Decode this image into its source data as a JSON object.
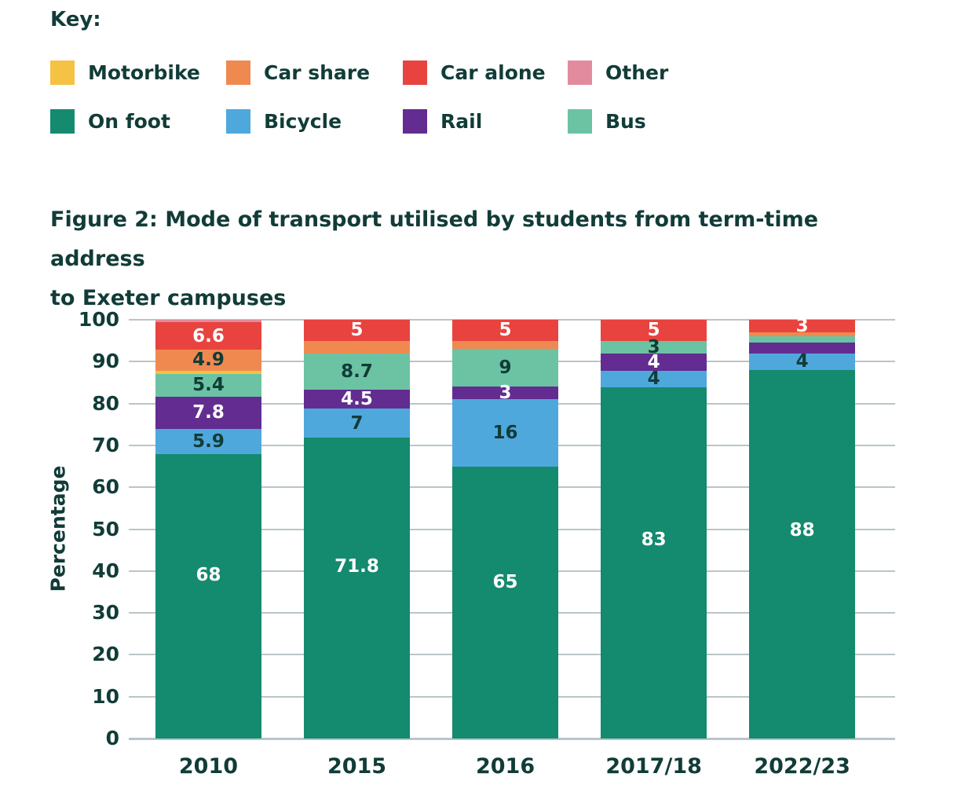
{
  "legend": {
    "title": "Key:",
    "items": [
      {
        "name": "motorbike",
        "label": "Motorbike",
        "color": "#F5C244"
      },
      {
        "name": "car-share",
        "label": "Car share",
        "color": "#F08950"
      },
      {
        "name": "car-alone",
        "label": "Car alone",
        "color": "#E8433E"
      },
      {
        "name": "other",
        "label": "Other",
        "color": "#E28B9F"
      },
      {
        "name": "on-foot",
        "label": "On foot",
        "color": "#148A6E"
      },
      {
        "name": "bicycle",
        "label": "Bicycle",
        "color": "#4FA8DC"
      },
      {
        "name": "rail",
        "label": "Rail",
        "color": "#632C90"
      },
      {
        "name": "bus",
        "label": "Bus",
        "color": "#6BC3A4"
      }
    ]
  },
  "figure": {
    "title_line1": "Figure 2: Mode of transport utilised by students from term-time address",
    "title_line2": "to Exeter campuses"
  },
  "chart_data": {
    "type": "bar",
    "stacked": true,
    "title": "Figure 2: Mode of transport utilised by students from term-time address to Exeter campuses",
    "xlabel": "",
    "ylabel": "Percentage",
    "ylim": [
      0,
      100
    ],
    "yticks": [
      0,
      10,
      20,
      30,
      40,
      50,
      60,
      70,
      80,
      90,
      100
    ],
    "grid": true,
    "legend_position": "top",
    "categories": [
      "2010",
      "2015",
      "2016",
      "2017/18",
      "2022/23"
    ],
    "series": [
      {
        "name": "On foot",
        "color": "#148A6E",
        "label_color": "#FFFFFF",
        "values": [
          68,
          71.8,
          65,
          83,
          88
        ],
        "labels": [
          "68",
          "71.8",
          "65",
          "83",
          "88"
        ]
      },
      {
        "name": "Bicycle",
        "color": "#4FA8DC",
        "label_color": "#113C38",
        "values": [
          5.9,
          7,
          16,
          4,
          4
        ],
        "labels": [
          "5.9",
          "7",
          "16",
          "4",
          "4"
        ]
      },
      {
        "name": "Rail",
        "color": "#632C90",
        "label_color": "#FFFFFF",
        "values": [
          7.8,
          4.5,
          3,
          4,
          2.5
        ],
        "labels": [
          "7.8",
          "4.5",
          "3",
          "4",
          ""
        ]
      },
      {
        "name": "Bus",
        "color": "#6BC3A4",
        "label_color": "#113C38",
        "values": [
          5.4,
          8.7,
          9,
          3,
          1.5
        ],
        "labels": [
          "5.4",
          "8.7",
          "9",
          "3",
          ""
        ]
      },
      {
        "name": "Motorbike",
        "color": "#F5C244",
        "label_color": "#113C38",
        "values": [
          0.8,
          0,
          0,
          0,
          0
        ],
        "labels": [
          "",
          "",
          "",
          "",
          ""
        ]
      },
      {
        "name": "Car share",
        "color": "#F08950",
        "label_color": "#113C38",
        "values": [
          4.9,
          3,
          2,
          0,
          1
        ],
        "labels": [
          "4.9",
          "",
          "",
          "",
          ""
        ]
      },
      {
        "name": "Car alone",
        "color": "#E8433E",
        "label_color": "#FFFFFF",
        "values": [
          6.6,
          5,
          5,
          5,
          3
        ],
        "labels": [
          "6.6",
          "5",
          "5",
          "5",
          "3"
        ]
      },
      {
        "name": "Other",
        "color": "#E28B9F",
        "label_color": "#113C38",
        "values": [
          0.6,
          0,
          0,
          0,
          0
        ],
        "labels": [
          "",
          "",
          "",
          "",
          ""
        ]
      }
    ]
  },
  "colors": {
    "text": "#113C38",
    "gridline": "#B9C5C8",
    "background": "#FFFFFF"
  }
}
